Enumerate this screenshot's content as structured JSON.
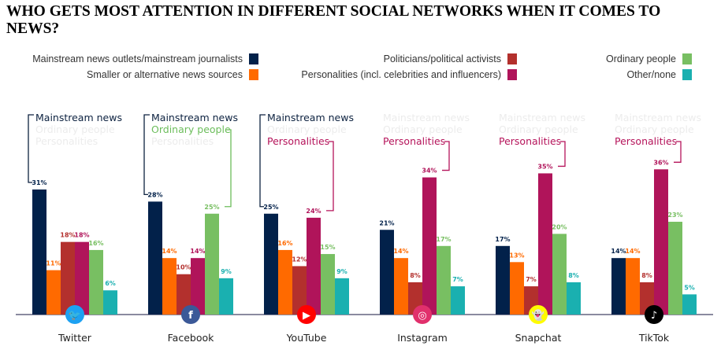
{
  "title": "WHO GETS MOST ATTENTION IN DIFFERENT SOCIAL NETWORKS WHEN IT COMES TO NEWS?",
  "chart_data": {
    "type": "bar",
    "title": "WHO GETS MOST ATTENTION IN DIFFERENT SOCIAL NETWORKS WHEN IT COMES TO NEWS?",
    "categories": [
      "Twitter",
      "Facebook",
      "YouTube",
      "Instagram",
      "Snapchat",
      "TikTok"
    ],
    "series": [
      {
        "name": "Mainstream news outlets/mainstream journalists",
        "color": "#02214a",
        "values": [
          31,
          28,
          25,
          21,
          17,
          14
        ]
      },
      {
        "name": "Smaller or alternative news sources",
        "color": "#ff6a00",
        "values": [
          11,
          14,
          16,
          14,
          13,
          14
        ]
      },
      {
        "name": "Politicians/political activists",
        "color": "#b3302d",
        "values": [
          18,
          10,
          12,
          8,
          7,
          8
        ]
      },
      {
        "name": "Personalities (incl. celebrities and influencers)",
        "color": "#b0145a",
        "values": [
          18,
          14,
          24,
          34,
          35,
          36
        ]
      },
      {
        "name": "Ordinary people",
        "color": "#78bf62",
        "values": [
          16,
          25,
          15,
          17,
          20,
          23
        ]
      },
      {
        "name": "Other/none",
        "color": "#1ab0b0",
        "values": [
          6,
          9,
          9,
          7,
          8,
          5
        ]
      }
    ],
    "ylim": [
      0,
      40
    ],
    "value_suffix": "%",
    "legend": "top",
    "annotation_labels": [
      "Mainstream news",
      "Ordinary people",
      "Personalities"
    ],
    "annotation_colors": [
      "#0d2240",
      "#6cbd5b",
      "#b5135a"
    ],
    "highlights": [
      [
        0
      ],
      [
        0,
        1
      ],
      [
        0,
        2
      ],
      [
        2
      ],
      [
        2
      ],
      [
        2
      ]
    ],
    "icons": [
      "twitter-icon",
      "facebook-icon",
      "youtube-icon",
      "instagram-icon",
      "snapchat-icon",
      "tiktok-icon"
    ]
  }
}
